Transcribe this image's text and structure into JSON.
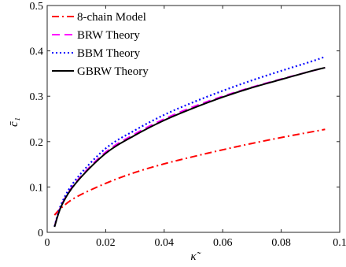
{
  "chart_data": {
    "type": "line",
    "xlabel": "κ̃",
    "ylabel": "c̄₁",
    "xlim": [
      0,
      0.1
    ],
    "ylim": [
      0,
      0.5
    ],
    "x_ticks": [
      "0",
      "0.02",
      "0.04",
      "0.06",
      "0.08",
      "0.1"
    ],
    "y_ticks": [
      "0",
      "0.1",
      "0.2",
      "0.3",
      "0.4",
      "0.5"
    ],
    "legend_position": "top-left",
    "grid": false,
    "series": [
      {
        "name": "8-chain Model",
        "color": "#ff0000",
        "dash": "dashdot",
        "x": [
          0.0025,
          0.005,
          0.01,
          0.02,
          0.03,
          0.04,
          0.05,
          0.06,
          0.07,
          0.08,
          0.09,
          0.095
        ],
        "y": [
          0.038,
          0.055,
          0.078,
          0.108,
          0.132,
          0.151,
          0.167,
          0.182,
          0.196,
          0.209,
          0.221,
          0.227
        ]
      },
      {
        "name": "BRW Theory",
        "color": "#ff00ff",
        "dash": "dash",
        "x": [
          0.0025,
          0.005,
          0.01,
          0.02,
          0.03,
          0.04,
          0.05,
          0.06,
          0.07,
          0.08,
          0.09,
          0.095
        ],
        "y": [
          0.013,
          0.062,
          0.112,
          0.177,
          0.217,
          0.25,
          0.277,
          0.3,
          0.32,
          0.338,
          0.355,
          0.363
        ]
      },
      {
        "name": "BBM Theory",
        "color": "#0000ff",
        "dash": "dot",
        "x": [
          0.0025,
          0.005,
          0.01,
          0.02,
          0.03,
          0.04,
          0.05,
          0.06,
          0.07,
          0.08,
          0.09,
          0.095
        ],
        "y": [
          0.013,
          0.065,
          0.118,
          0.185,
          0.225,
          0.259,
          0.287,
          0.312,
          0.335,
          0.356,
          0.376,
          0.387
        ]
      },
      {
        "name": "GBRW Theory",
        "color": "#000000",
        "dash": "solid",
        "x": [
          0.0025,
          0.005,
          0.01,
          0.02,
          0.03,
          0.04,
          0.05,
          0.06,
          0.07,
          0.08,
          0.09,
          0.095
        ],
        "y": [
          0.012,
          0.06,
          0.11,
          0.174,
          0.214,
          0.247,
          0.274,
          0.298,
          0.319,
          0.337,
          0.355,
          0.363
        ]
      }
    ]
  }
}
